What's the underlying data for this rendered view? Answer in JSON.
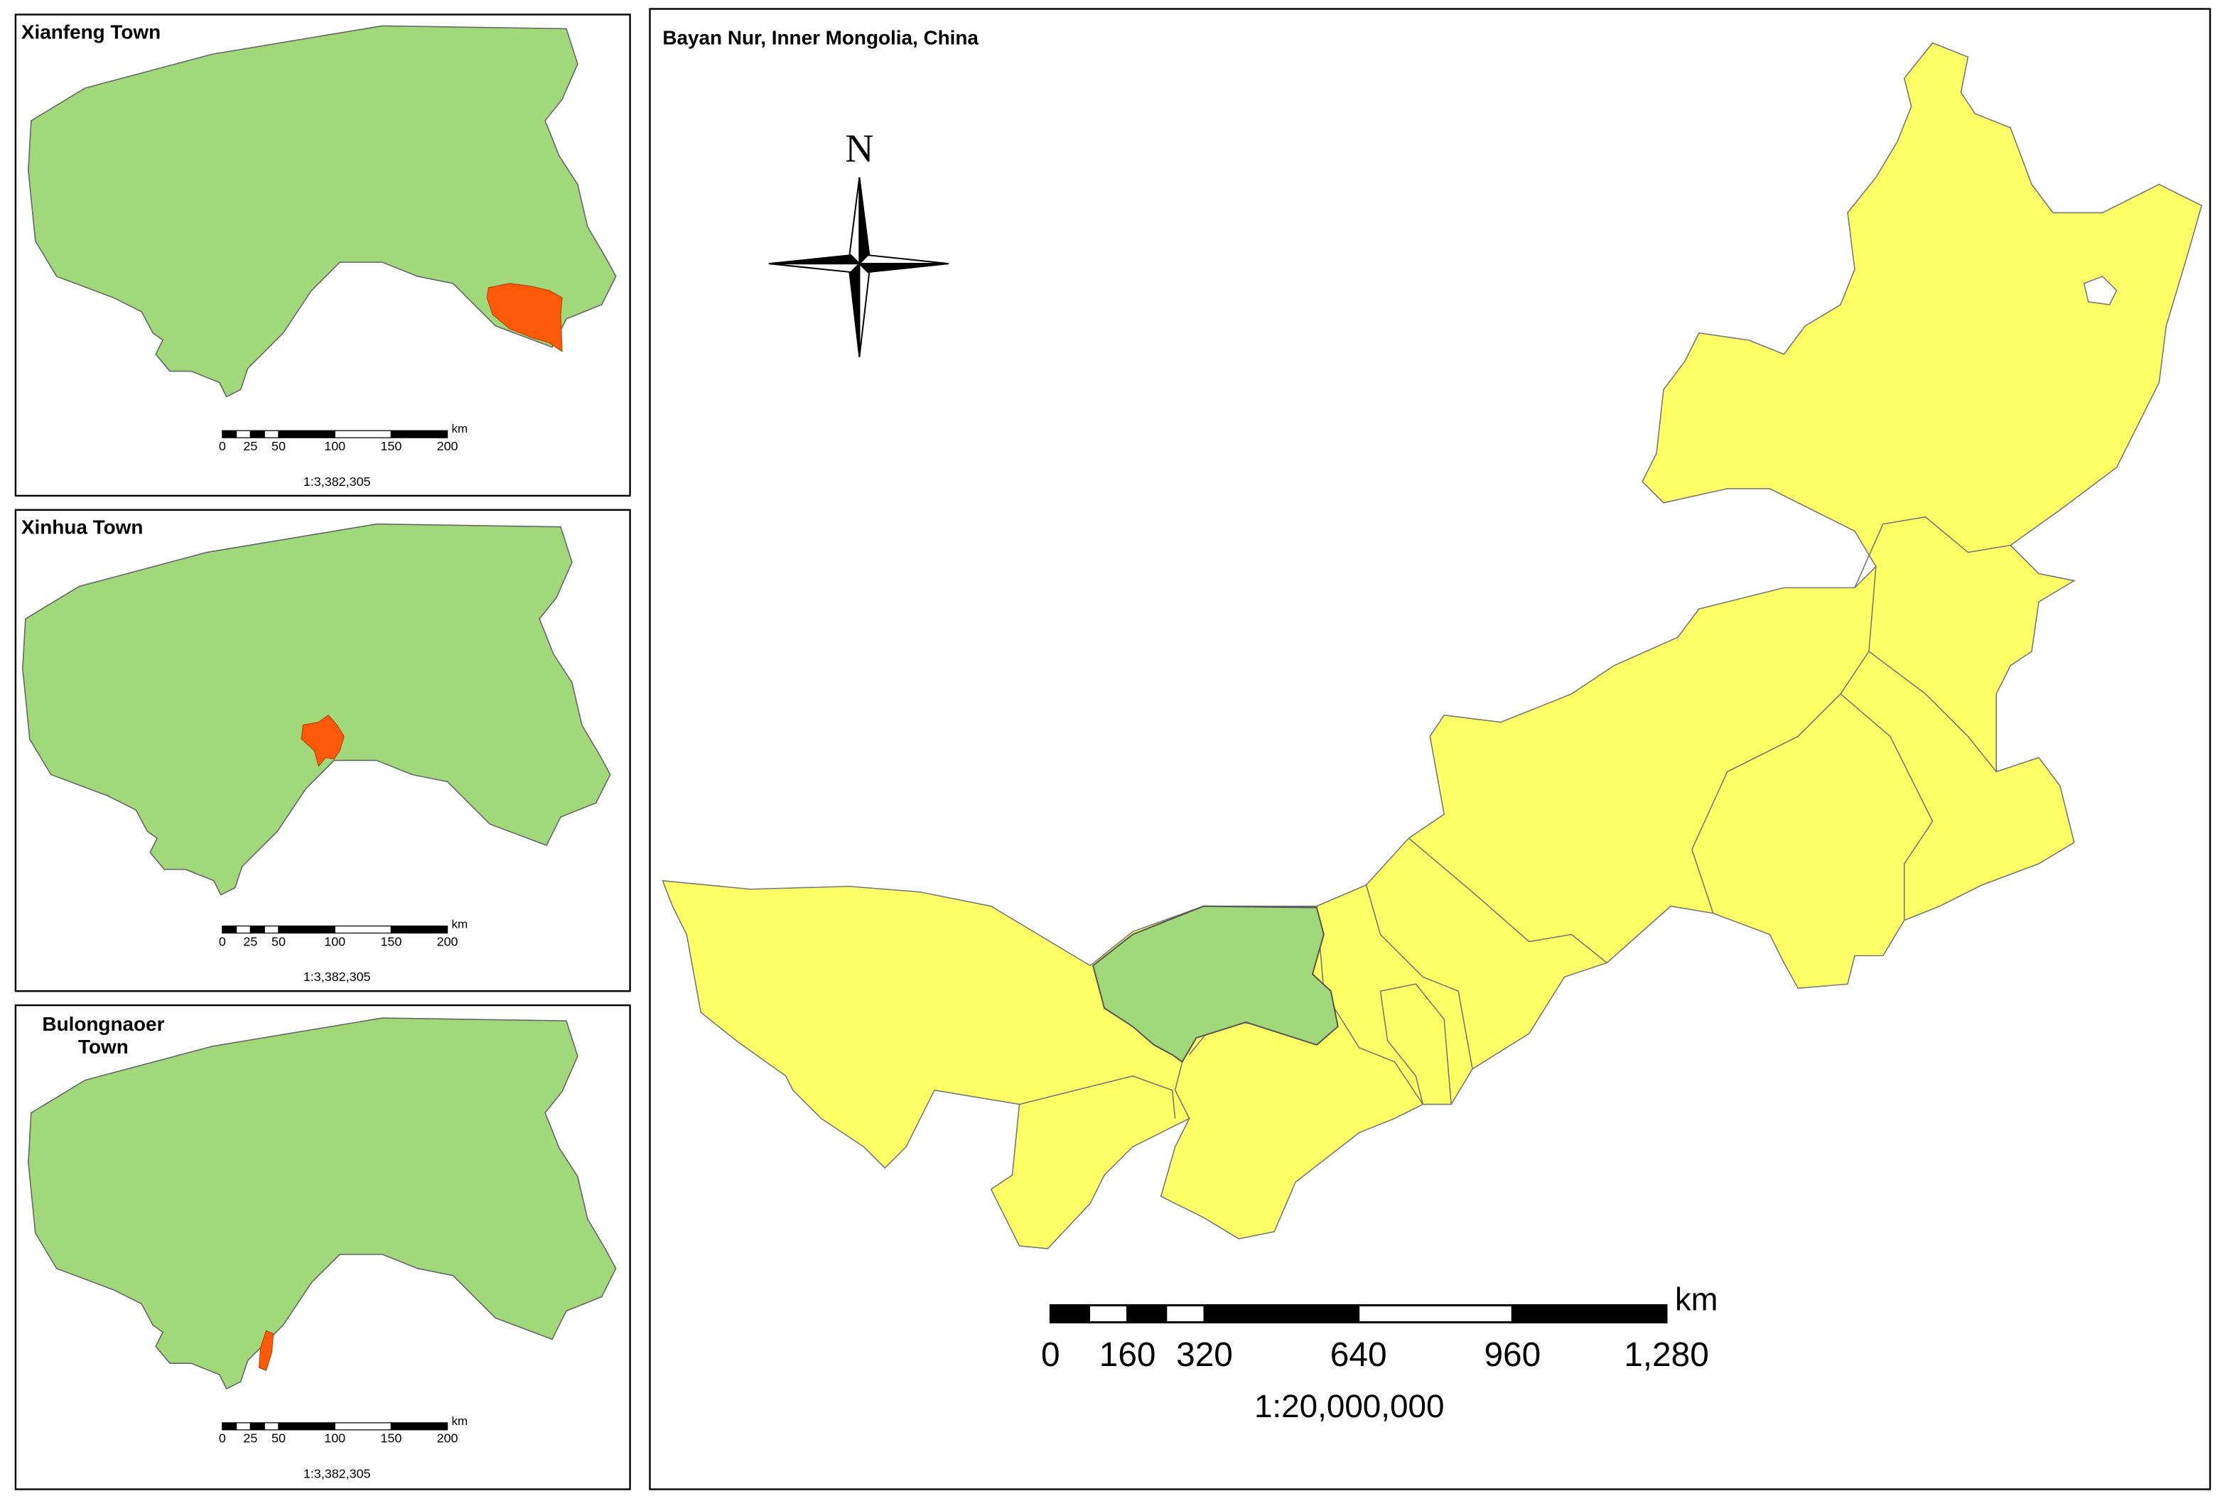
{
  "insets": [
    {
      "title": "Xianfeng Town",
      "scale_bar": {
        "ticks": [
          0,
          25,
          50,
          100,
          150,
          200
        ],
        "unit": "km"
      },
      "scale": "1:3,382,305"
    },
    {
      "title": "Xinhua Town",
      "scale_bar": {
        "ticks": [
          0,
          25,
          50,
          100,
          150,
          200
        ],
        "unit": "km"
      },
      "scale": "1:3,382,305"
    },
    {
      "title": "Bulongnaoer Town",
      "scale_bar": {
        "ticks": [
          0,
          25,
          50,
          100,
          150,
          200
        ],
        "unit": "km"
      },
      "scale": "1:3,382,305"
    }
  ],
  "main": {
    "title": "Bayan Nur, Inner Mongolia, China",
    "north": "N",
    "scale_bar": {
      "ticks": [
        0,
        160,
        320,
        640,
        960,
        {
          "value": 1280,
          "label": "1,280"
        }
      ],
      "unit": "km"
    },
    "scale": "1:20,000,000"
  }
}
